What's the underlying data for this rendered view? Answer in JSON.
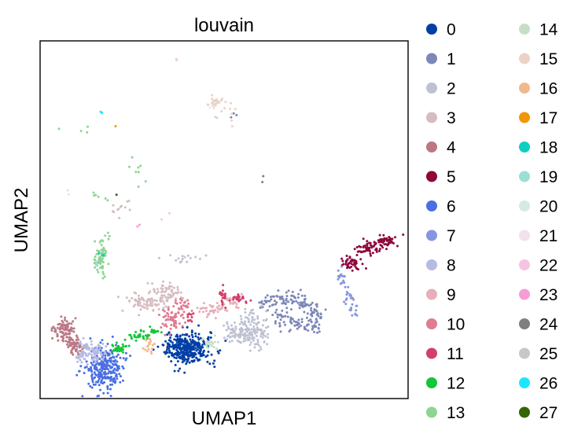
{
  "chart_data": {
    "type": "scatter",
    "title": "louvain",
    "xlabel": "UMAP1",
    "ylabel": "UMAP2",
    "xlim": [
      0,
      100
    ],
    "ylim": [
      0,
      100
    ],
    "grid": false,
    "ticks": false,
    "legend_placement": "right",
    "legend_columns": 2,
    "series": [
      {
        "label": "0",
        "color": "#023fa5",
        "clusters": [
          {
            "cx": 40.0,
            "cy": 14.0,
            "sx": 3.0,
            "sy": 2.2,
            "n": 340
          }
        ]
      },
      {
        "label": "1",
        "color": "#7d87b9",
        "clusters": [
          {
            "cx": 63.0,
            "cy": 27.0,
            "sx": 1.5,
            "sy": 1.2,
            "n": 30
          },
          {
            "cx": 67.5,
            "cy": 28.0,
            "sx": 1.5,
            "sy": 1.2,
            "n": 30
          },
          {
            "cx": 71.5,
            "cy": 27.0,
            "sx": 1.5,
            "sy": 1.2,
            "n": 30
          },
          {
            "cx": 74.5,
            "cy": 24.0,
            "sx": 1.4,
            "sy": 1.2,
            "n": 30
          },
          {
            "cx": 74.0,
            "cy": 20.5,
            "sx": 1.4,
            "sy": 1.1,
            "n": 25
          },
          {
            "cx": 69.0,
            "cy": 21.0,
            "sx": 1.5,
            "sy": 1.1,
            "n": 25
          },
          {
            "cx": 65.0,
            "cy": 22.5,
            "sx": 1.4,
            "sy": 1.1,
            "n": 25
          },
          {
            "cx": 53.5,
            "cy": 78.5,
            "sx": 0.8,
            "sy": 0.8,
            "n": 3
          }
        ]
      },
      {
        "label": "2",
        "color": "#bec1d4",
        "clusters": [
          {
            "cx": 54.0,
            "cy": 18.5,
            "sx": 2.0,
            "sy": 1.8,
            "n": 70
          },
          {
            "cx": 58.5,
            "cy": 17.5,
            "sx": 2.0,
            "sy": 1.8,
            "n": 70
          },
          {
            "cx": 57.5,
            "cy": 22.0,
            "sx": 1.8,
            "sy": 1.6,
            "n": 40
          },
          {
            "cx": 38.0,
            "cy": 39.0,
            "sx": 3.0,
            "sy": 0.5,
            "n": 10
          }
        ]
      },
      {
        "label": "3",
        "color": "#d6bcc0",
        "clusters": [
          {
            "cx": 29.0,
            "cy": 27.0,
            "sx": 2.8,
            "sy": 1.3,
            "n": 80
          },
          {
            "cx": 34.5,
            "cy": 30.0,
            "sx": 2.2,
            "sy": 1.4,
            "n": 60
          },
          {
            "cx": 22.5,
            "cy": 53.0,
            "sx": 1.2,
            "sy": 1.6,
            "n": 12
          }
        ]
      },
      {
        "label": "4",
        "color": "#bb7784",
        "clusters": [
          {
            "cx": 6.5,
            "cy": 19.0,
            "sx": 1.4,
            "sy": 1.6,
            "n": 80
          },
          {
            "cx": 9.5,
            "cy": 15.0,
            "sx": 1.2,
            "sy": 1.4,
            "n": 60
          }
        ]
      },
      {
        "label": "5",
        "color": "#8e063b",
        "clusters": [
          {
            "cx": 84.5,
            "cy": 38.0,
            "sx": 1.4,
            "sy": 1.1,
            "n": 45
          },
          {
            "cx": 89.5,
            "cy": 42.0,
            "sx": 1.6,
            "sy": 1.0,
            "n": 50
          },
          {
            "cx": 94.5,
            "cy": 44.0,
            "sx": 1.4,
            "sy": 0.8,
            "n": 45
          }
        ]
      },
      {
        "label": "6",
        "color": "#4a6fe3",
        "clusters": [
          {
            "cx": 17.5,
            "cy": 8.5,
            "sx": 2.3,
            "sy": 3.2,
            "n": 260
          }
        ]
      },
      {
        "label": "7",
        "color": "#8595e1",
        "clusters": [
          {
            "cx": 82.0,
            "cy": 33.5,
            "sx": 0.6,
            "sy": 1.5,
            "n": 15
          },
          {
            "cx": 83.5,
            "cy": 28.5,
            "sx": 0.7,
            "sy": 1.5,
            "n": 15
          },
          {
            "cx": 85.5,
            "cy": 25.0,
            "sx": 0.7,
            "sy": 1.2,
            "n": 12
          }
        ]
      },
      {
        "label": "8",
        "color": "#b5bbe3",
        "clusters": [
          {
            "cx": 13.0,
            "cy": 13.0,
            "sx": 1.8,
            "sy": 1.5,
            "n": 70
          },
          {
            "cx": 16.0,
            "cy": 12.0,
            "sx": 1.5,
            "sy": 1.2,
            "n": 25
          }
        ]
      },
      {
        "label": "9",
        "color": "#e6afb9",
        "clusters": [
          {
            "cx": 46.5,
            "cy": 25.0,
            "sx": 2.0,
            "sy": 1.0,
            "n": 40
          },
          {
            "cx": 52.0,
            "cy": 27.0,
            "sx": 1.5,
            "sy": 1.0,
            "n": 25
          }
        ]
      },
      {
        "label": "10",
        "color": "#e07b91",
        "clusters": [
          {
            "cx": 36.0,
            "cy": 22.5,
            "sx": 1.6,
            "sy": 1.8,
            "n": 60
          },
          {
            "cx": 39.0,
            "cy": 26.0,
            "sx": 1.2,
            "sy": 1.2,
            "n": 20
          }
        ]
      },
      {
        "label": "11",
        "color": "#d33f6a",
        "clusters": [
          {
            "cx": 49.5,
            "cy": 29.0,
            "sx": 0.5,
            "sy": 1.5,
            "n": 20
          },
          {
            "cx": 54.5,
            "cy": 28.0,
            "sx": 1.4,
            "sy": 0.5,
            "n": 25
          },
          {
            "cx": 40.5,
            "cy": 22.5,
            "sx": 0.8,
            "sy": 1.0,
            "n": 10
          }
        ]
      },
      {
        "label": "12",
        "color": "#11c638",
        "clusters": [
          {
            "cx": 21.0,
            "cy": 14.0,
            "sx": 1.5,
            "sy": 0.7,
            "n": 30
          },
          {
            "cx": 27.0,
            "cy": 17.5,
            "sx": 1.5,
            "sy": 0.6,
            "n": 30
          },
          {
            "cx": 31.5,
            "cy": 19.0,
            "sx": 1.0,
            "sy": 0.6,
            "n": 15
          }
        ]
      },
      {
        "label": "13",
        "color": "#8dd593",
        "clusters": [
          {
            "cx": 16.5,
            "cy": 39.0,
            "sx": 0.9,
            "sy": 2.2,
            "n": 60
          },
          {
            "cx": 15.5,
            "cy": 56.0,
            "sx": 1.5,
            "sy": 1.0,
            "n": 6
          },
          {
            "cx": 26.5,
            "cy": 64.0,
            "sx": 1.0,
            "sy": 2.0,
            "n": 8
          },
          {
            "cx": 10.0,
            "cy": 76.0,
            "sx": 3.0,
            "sy": 1.0,
            "n": 4
          },
          {
            "cx": 17.5,
            "cy": 45.0,
            "sx": 0.8,
            "sy": 1.5,
            "n": 8
          }
        ]
      },
      {
        "label": "14",
        "color": "#c6dec7",
        "clusters": [
          {
            "cx": 46.5,
            "cy": 15.5,
            "sx": 1.3,
            "sy": 1.0,
            "n": 20
          }
        ]
      },
      {
        "label": "15",
        "color": "#ead3c6",
        "clusters": [
          {
            "cx": 47.5,
            "cy": 83.0,
            "sx": 1.0,
            "sy": 0.8,
            "n": 25
          },
          {
            "cx": 50.5,
            "cy": 79.5,
            "sx": 1.5,
            "sy": 1.5,
            "n": 10
          },
          {
            "cx": 38.0,
            "cy": 95.0,
            "sx": 0.5,
            "sy": 0.5,
            "n": 2
          }
        ]
      },
      {
        "label": "16",
        "color": "#f0b98d",
        "clusters": [
          {
            "cx": 29.5,
            "cy": 15.0,
            "sx": 0.7,
            "sy": 1.5,
            "n": 18
          }
        ]
      },
      {
        "label": "17",
        "color": "#ef9708",
        "clusters": [
          {
            "cx": 20.5,
            "cy": 76.0,
            "sx": 0.3,
            "sy": 0.3,
            "n": 1
          }
        ]
      },
      {
        "label": "18",
        "color": "#0fcfc0",
        "clusters": [
          {
            "cx": 16.5,
            "cy": 40.0,
            "sx": 0.4,
            "sy": 0.8,
            "n": 3
          }
        ]
      },
      {
        "label": "19",
        "color": "#9cded6",
        "clusters": [
          {
            "cx": 16.0,
            "cy": 37.5,
            "sx": 0.5,
            "sy": 0.7,
            "n": 3
          }
        ]
      },
      {
        "label": "20",
        "color": "#d5eae7",
        "clusters": [
          {
            "cx": 8.0,
            "cy": 58.0,
            "sx": 0.5,
            "sy": 0.5,
            "n": 2
          }
        ]
      },
      {
        "label": "21",
        "color": "#f3e1eb",
        "clusters": [
          {
            "cx": 48.0,
            "cy": 82.0,
            "sx": 2.0,
            "sy": 2.0,
            "n": 3
          }
        ]
      },
      {
        "label": "22",
        "color": "#f6c4e1",
        "clusters": [
          {
            "cx": 35.0,
            "cy": 52.0,
            "sx": 1.5,
            "sy": 1.5,
            "n": 2
          }
        ]
      },
      {
        "label": "23",
        "color": "#f79cd4",
        "clusters": [
          {
            "cx": 27.0,
            "cy": 48.0,
            "sx": 1.0,
            "sy": 1.0,
            "n": 2
          }
        ]
      },
      {
        "label": "24",
        "color": "#7f7f7f",
        "clusters": [
          {
            "cx": 60.0,
            "cy": 62.0,
            "sx": 1.0,
            "sy": 1.0,
            "n": 2
          }
        ]
      },
      {
        "label": "25",
        "color": "#c7c7c7",
        "clusters": [
          {
            "cx": 40.0,
            "cy": 40.0,
            "sx": 3.0,
            "sy": 1.0,
            "n": 6
          }
        ]
      },
      {
        "label": "26",
        "color": "#1ce6ff",
        "clusters": [
          {
            "cx": 16.5,
            "cy": 80.0,
            "sx": 0.3,
            "sy": 0.3,
            "n": 2
          }
        ]
      },
      {
        "label": "27",
        "color": "#336600",
        "clusters": [
          {
            "cx": 20.5,
            "cy": 56.5,
            "sx": 0.3,
            "sy": 0.3,
            "n": 1
          }
        ]
      }
    ]
  }
}
